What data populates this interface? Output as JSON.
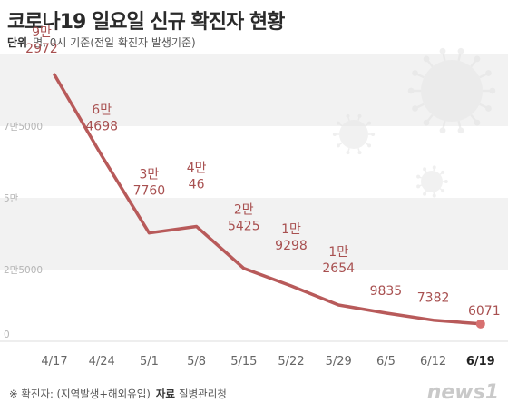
{
  "header": {
    "title": "코로나19 일요일 신규 확진자 현황",
    "unit_label": "단위",
    "unit_text": "명, 0시 기준(전일 확진자 발생기준)"
  },
  "footer": {
    "note": "※ 확진자: (지역발생+해외유입)",
    "source_label": "자료",
    "source": "질병관리청",
    "logo": "news1"
  },
  "colors": {
    "line": "#b85a5a",
    "label": "#a85050",
    "band": "#f2f2f2",
    "highlight_marker": "#d77070"
  },
  "chart_data": {
    "type": "line",
    "title": "코로나19 일요일 신규 확진자 현황",
    "xlabel": "",
    "ylabel": "",
    "categories": [
      "4/17",
      "4/24",
      "5/1",
      "5/8",
      "5/15",
      "5/22",
      "5/29",
      "6/5",
      "6/12",
      "6/19"
    ],
    "values": [
      92972,
      64698,
      37760,
      40046,
      25425,
      19298,
      12654,
      9835,
      7382,
      6071
    ],
    "data_labels": [
      [
        "9만",
        "2972"
      ],
      [
        "6만",
        "4698"
      ],
      [
        "3만",
        "7760"
      ],
      [
        "4만",
        "46"
      ],
      [
        "2만",
        "5425"
      ],
      [
        "1만",
        "9298"
      ],
      [
        "1만",
        "2654"
      ],
      [
        "",
        "9835"
      ],
      [
        "",
        "7382"
      ],
      [
        "",
        "6071"
      ]
    ],
    "y_ticks": [
      0,
      25000,
      50000,
      75000
    ],
    "y_tick_labels": [
      "0",
      "2만5000",
      "5만",
      "7만5000"
    ],
    "ylim": [
      0,
      100000
    ],
    "highlight_category": "6/19",
    "grid": "alternating horizontal bands"
  }
}
